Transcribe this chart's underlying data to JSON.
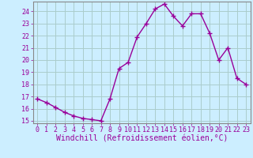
{
  "x": [
    0,
    1,
    2,
    3,
    4,
    5,
    6,
    7,
    8,
    9,
    10,
    11,
    12,
    13,
    14,
    15,
    16,
    17,
    18,
    19,
    20,
    21,
    22,
    23
  ],
  "y": [
    16.8,
    16.5,
    16.1,
    15.7,
    15.4,
    15.2,
    15.1,
    15.0,
    16.8,
    19.3,
    19.8,
    21.9,
    23.0,
    24.2,
    24.6,
    23.6,
    22.8,
    23.8,
    23.8,
    22.2,
    20.0,
    21.0,
    18.5,
    18.0
  ],
  "line_color": "#990099",
  "marker": "+",
  "marker_size": 4,
  "marker_lw": 1.0,
  "bg_color": "#cceeff",
  "grid_color": "#aacccc",
  "xlabel": "Windchill (Refroidissement éolien,°C)",
  "ylim_min": 14.8,
  "ylim_max": 24.8,
  "xlim_min": -0.5,
  "xlim_max": 23.5,
  "yticks": [
    15,
    16,
    17,
    18,
    19,
    20,
    21,
    22,
    23,
    24
  ],
  "xticks": [
    0,
    1,
    2,
    3,
    4,
    5,
    6,
    7,
    8,
    9,
    10,
    11,
    12,
    13,
    14,
    15,
    16,
    17,
    18,
    19,
    20,
    21,
    22,
    23
  ],
  "tick_label_color": "#990099",
  "xlabel_color": "#990099",
  "xlabel_fontsize": 7,
  "tick_fontsize": 6,
  "line_width": 1.0,
  "spine_color": "#888888"
}
